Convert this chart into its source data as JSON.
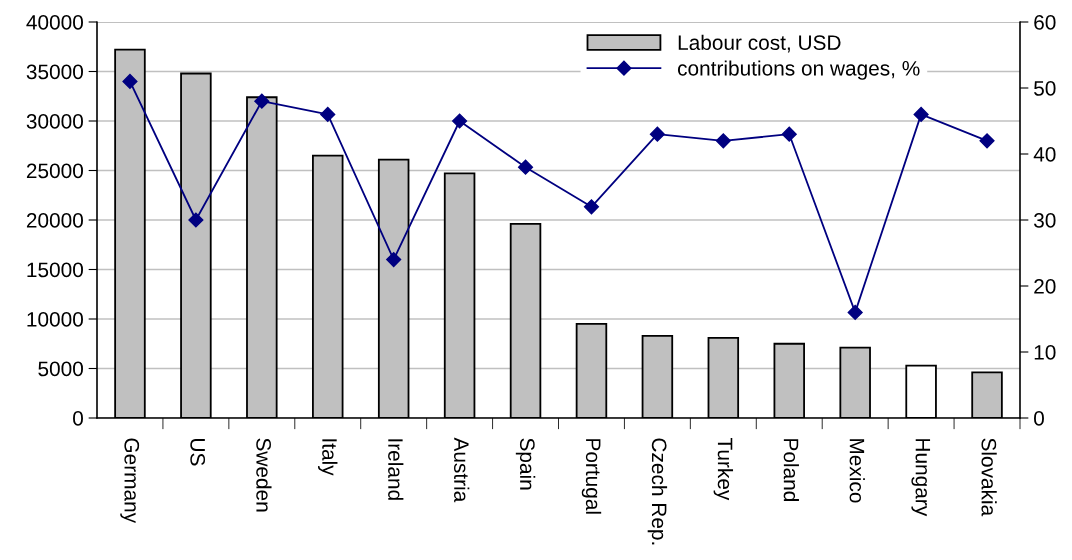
{
  "chart_data": {
    "type": "bar",
    "categories": [
      "Germany",
      "US",
      "Sweden",
      "Italy",
      "Ireland",
      "Austria",
      "Spain",
      "Portugal",
      "Czech Rep.",
      "Turkey",
      "Poland",
      "Mexico",
      "Hungary",
      "Slovakia"
    ],
    "series": [
      {
        "name": "Labour cost, USD",
        "colors": [
          "#c0c0c0",
          "#c0c0c0",
          "#c0c0c0",
          "#c0c0c0",
          "#c0c0c0",
          "#c0c0c0",
          "#c0c0c0",
          "#c0c0c0",
          "#c0c0c0",
          "#c0c0c0",
          "#c0c0c0",
          "#c0c0c0",
          "#ffffff",
          "#c0c0c0"
        ],
        "color": "#c0c0c0",
        "values": [
          37200,
          34800,
          32400,
          26500,
          26100,
          24700,
          19600,
          9500,
          8300,
          8100,
          7500,
          7100,
          5300,
          4600
        ]
      },
      {
        "name": "contributions on wages, %",
        "type": "line",
        "axis": "y2",
        "color": "#000080",
        "marker": "diamond",
        "values": [
          51,
          30,
          48,
          46,
          24,
          45,
          38,
          32,
          43,
          42,
          43,
          16,
          46,
          42
        ]
      }
    ],
    "ylim": [
      0,
      40000
    ],
    "yticks": [
      0,
      5000,
      10000,
      15000,
      20000,
      25000,
      30000,
      35000,
      40000
    ],
    "y2lim": [
      0,
      60
    ],
    "y2ticks": [
      0,
      10,
      20,
      30,
      40,
      50,
      60
    ],
    "grid": "y",
    "legend": "top right"
  }
}
